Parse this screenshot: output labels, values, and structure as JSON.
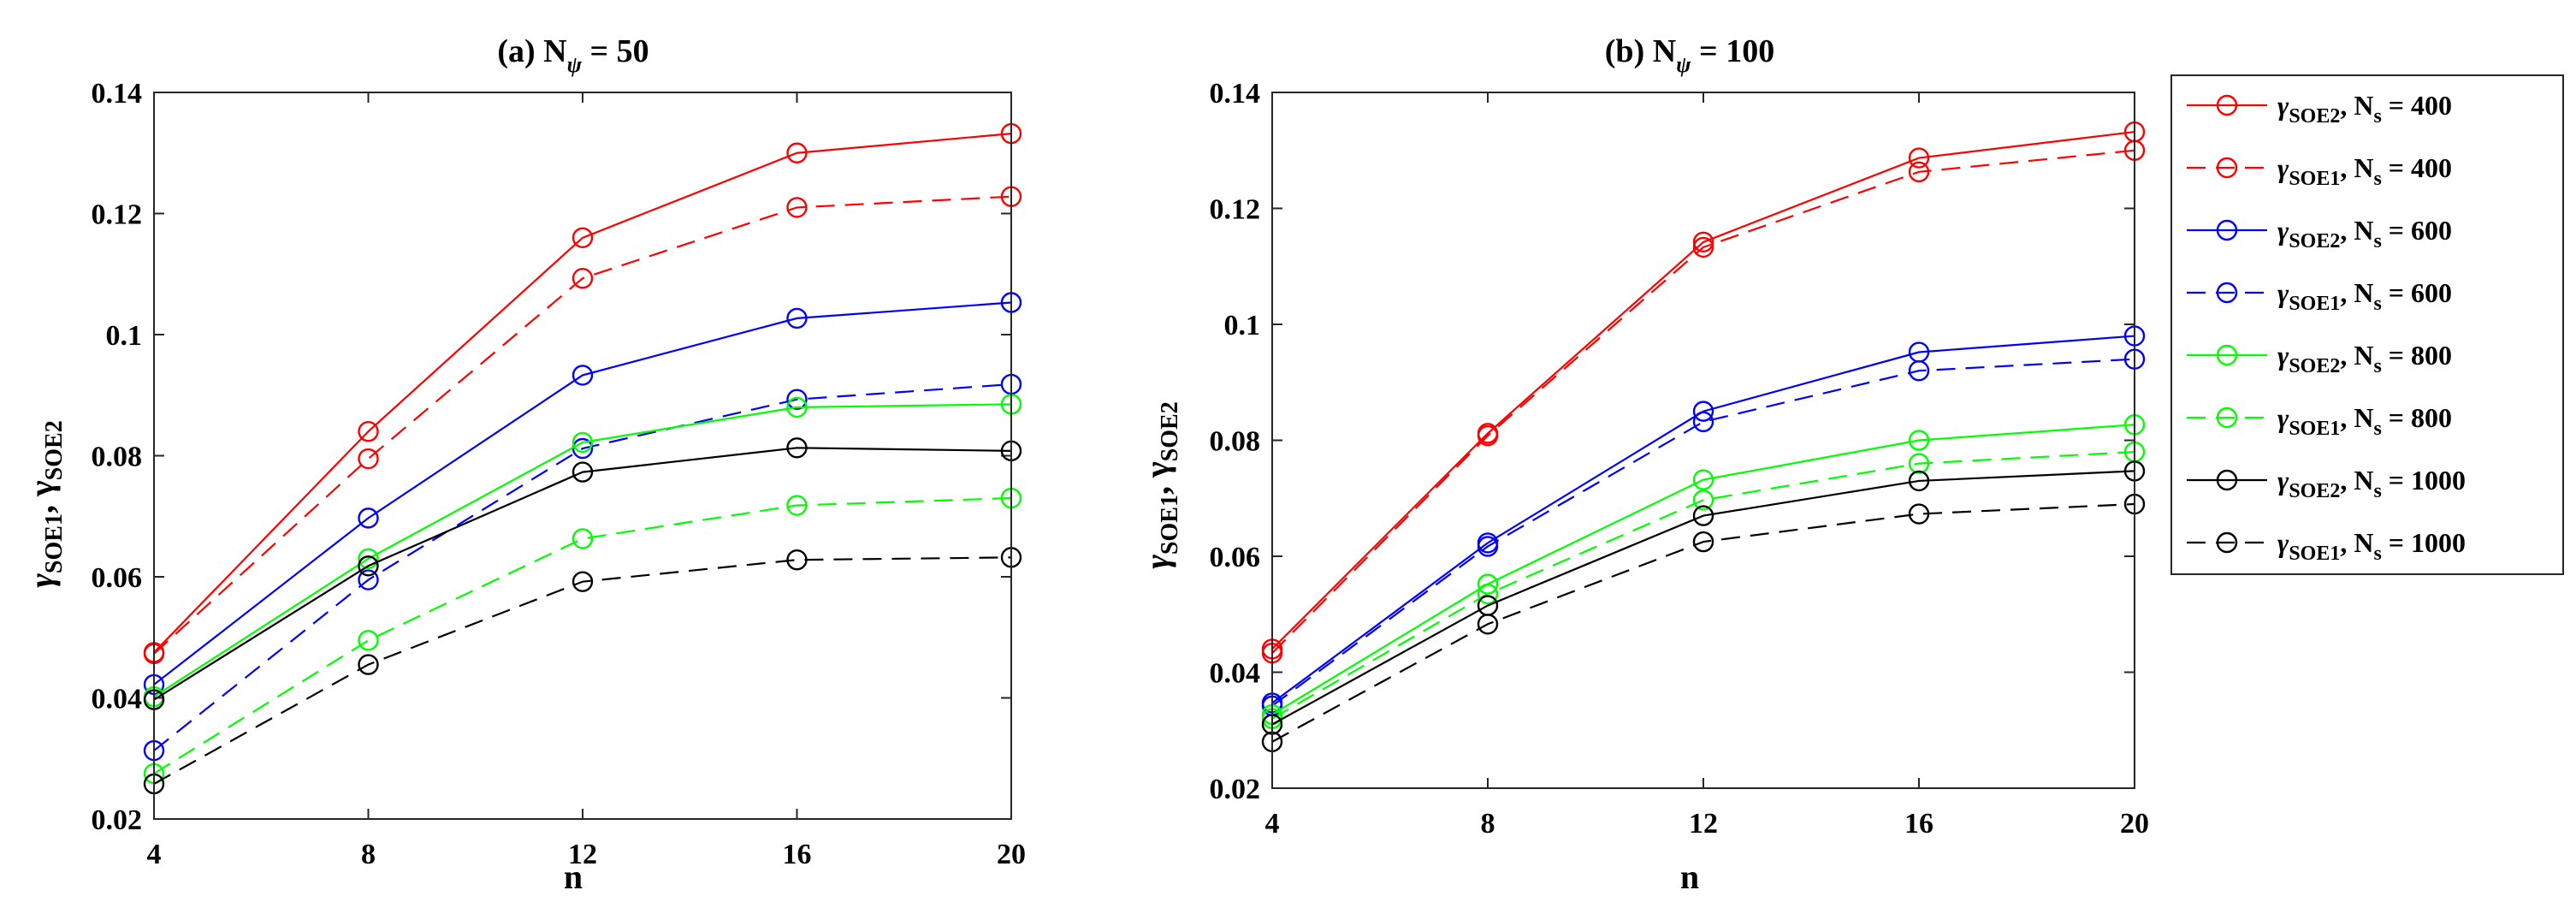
{
  "chart_data": [
    {
      "type": "line",
      "title": "(a) N",
      "title_sub": "ψ",
      "title_tail": " = 50",
      "xlabel": "n",
      "ylabel_parts": [
        "γ",
        "SOE1",
        ", γ",
        "SOE2"
      ],
      "x": [
        4,
        8,
        12,
        16,
        20
      ],
      "xticks": [
        "4",
        "8",
        "12",
        "16",
        "20"
      ],
      "ylim": [
        0.02,
        0.14
      ],
      "yticks": [
        "0.02",
        "0.04",
        "0.06",
        "0.08",
        "0.1",
        "0.12",
        "0.14"
      ],
      "series": [
        {
          "name": "γSOE2, Ns = 400",
          "color": "#ff0000",
          "dash": false,
          "values": [
            0.0475,
            0.084,
            0.116,
            0.13,
            0.1332
          ]
        },
        {
          "name": "γSOE1, Ns = 400",
          "color": "#ff0000",
          "dash": true,
          "values": [
            0.0473,
            0.0795,
            0.1093,
            0.121,
            0.1228
          ]
        },
        {
          "name": "γSOE2, Ns = 600",
          "color": "#0000ff",
          "dash": false,
          "values": [
            0.0422,
            0.0697,
            0.0933,
            0.1027,
            0.1053
          ]
        },
        {
          "name": "γSOE1, Ns = 600",
          "color": "#0000ff",
          "dash": true,
          "values": [
            0.0313,
            0.0595,
            0.0812,
            0.0893,
            0.0918
          ]
        },
        {
          "name": "γSOE2, Ns = 800",
          "color": "#00ff00",
          "dash": false,
          "values": [
            0.0402,
            0.063,
            0.0822,
            0.088,
            0.0885
          ]
        },
        {
          "name": "γSOE1, Ns = 800",
          "color": "#00ff00",
          "dash": true,
          "values": [
            0.0275,
            0.0495,
            0.0663,
            0.0718,
            0.073
          ]
        },
        {
          "name": "γSOE2, Ns = 1000",
          "color": "#000000",
          "dash": false,
          "values": [
            0.0397,
            0.0618,
            0.0773,
            0.0813,
            0.0808
          ]
        },
        {
          "name": "γSOE1, Ns = 1000",
          "color": "#000000",
          "dash": true,
          "values": [
            0.0258,
            0.0455,
            0.0592,
            0.0628,
            0.0632
          ]
        }
      ]
    },
    {
      "type": "line",
      "title": "(b) N",
      "title_sub": "ψ",
      "title_tail": " = 100",
      "xlabel": "n",
      "ylabel_parts": [
        "γ",
        "SOE1",
        ", γ",
        "SOE2"
      ],
      "x": [
        4,
        8,
        12,
        16,
        20
      ],
      "xticks": [
        "4",
        "8",
        "12",
        "16",
        "20"
      ],
      "ylim": [
        0.02,
        0.14
      ],
      "yticks": [
        "0.02",
        "0.04",
        "0.06",
        "0.08",
        "0.1",
        "0.12",
        "0.14"
      ],
      "series": [
        {
          "name": "γSOE2, Ns = 400",
          "color": "#ff0000",
          "dash": false,
          "values": [
            0.044,
            0.0812,
            0.1142,
            0.1287,
            0.1332
          ]
        },
        {
          "name": "γSOE1, Ns = 400",
          "color": "#ff0000",
          "dash": true,
          "values": [
            0.0433,
            0.0808,
            0.1133,
            0.1263,
            0.13
          ]
        },
        {
          "name": "γSOE2, Ns = 600",
          "color": "#0000ff",
          "dash": false,
          "values": [
            0.0347,
            0.0623,
            0.085,
            0.0952,
            0.098
          ]
        },
        {
          "name": "γSOE1, Ns = 600",
          "color": "#0000ff",
          "dash": true,
          "values": [
            0.0342,
            0.0617,
            0.0832,
            0.092,
            0.094
          ]
        },
        {
          "name": "γSOE2, Ns = 800",
          "color": "#00ff00",
          "dash": false,
          "values": [
            0.0327,
            0.0552,
            0.0732,
            0.08,
            0.0827
          ]
        },
        {
          "name": "γSOE1, Ns = 800",
          "color": "#00ff00",
          "dash": true,
          "values": [
            0.032,
            0.0535,
            0.0697,
            0.076,
            0.078
          ]
        },
        {
          "name": "γSOE2, Ns = 1000",
          "color": "#000000",
          "dash": false,
          "values": [
            0.031,
            0.0515,
            0.067,
            0.073,
            0.0747
          ]
        },
        {
          "name": "γSOE1, Ns = 1000",
          "color": "#000000",
          "dash": true,
          "values": [
            0.028,
            0.0483,
            0.0625,
            0.0673,
            0.069
          ]
        }
      ]
    }
  ],
  "legend": {
    "placement": "right",
    "entries": [
      {
        "sym": "γ",
        "sub": "SOE2",
        "mid": ", N",
        "ssub": "s",
        "tail": " = 400",
        "color": "#ff0000",
        "dash": false
      },
      {
        "sym": "γ",
        "sub": "SOE1",
        "mid": ", N",
        "ssub": "s",
        "tail": " = 400",
        "color": "#ff0000",
        "dash": true
      },
      {
        "sym": "γ",
        "sub": "SOE2",
        "mid": ", N",
        "ssub": "s",
        "tail": " = 600",
        "color": "#0000ff",
        "dash": false
      },
      {
        "sym": "γ",
        "sub": "SOE1",
        "mid": ", N",
        "ssub": "s",
        "tail": " = 600",
        "color": "#0000ff",
        "dash": true
      },
      {
        "sym": "γ",
        "sub": "SOE2",
        "mid": ", N",
        "ssub": "s",
        "tail": " = 800",
        "color": "#00ff00",
        "dash": false
      },
      {
        "sym": "γ",
        "sub": "SOE1",
        "mid": ", N",
        "ssub": "s",
        "tail": " = 800",
        "color": "#00ff00",
        "dash": true
      },
      {
        "sym": "γ",
        "sub": "SOE2",
        "mid": ", N",
        "ssub": "s",
        "tail": " = 1000",
        "color": "#000000",
        "dash": false
      },
      {
        "sym": "γ",
        "sub": "SOE1",
        "mid": ", N",
        "ssub": "s",
        "tail": " = 1000",
        "color": "#000000",
        "dash": true
      }
    ]
  }
}
